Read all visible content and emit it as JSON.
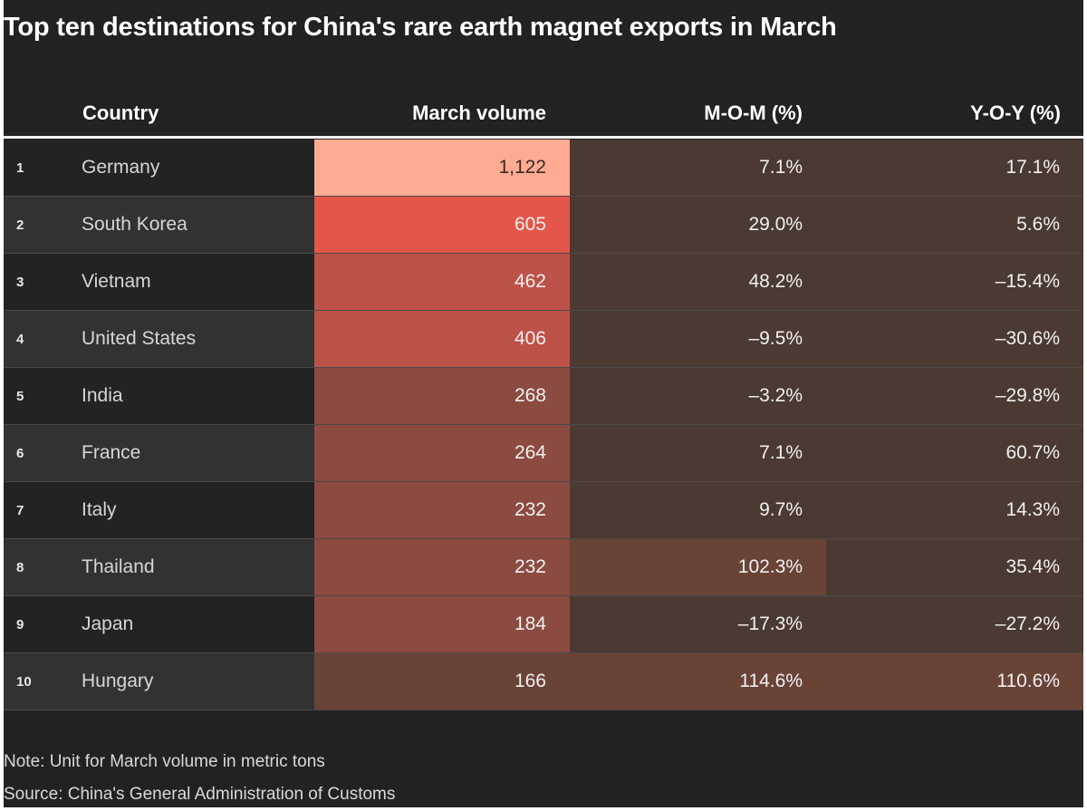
{
  "chart_data": {
    "type": "table",
    "title": "Top ten destinations for China's rare earth magnet exports in March",
    "columns": [
      "",
      "Country",
      "March volume",
      "M-O-M (%)",
      "Y-O-Y (%)"
    ],
    "rows": [
      {
        "rank": "1",
        "country": "Germany",
        "volume": "1,122",
        "mom": "7.1%",
        "yoy": "17.1%"
      },
      {
        "rank": "2",
        "country": "South Korea",
        "volume": "605",
        "mom": "29.0%",
        "yoy": "5.6%"
      },
      {
        "rank": "3",
        "country": "Vietnam",
        "volume": "462",
        "mom": "48.2%",
        "yoy": "–15.4%"
      },
      {
        "rank": "4",
        "country": "United States",
        "volume": "406",
        "mom": "–9.5%",
        "yoy": "–30.6%"
      },
      {
        "rank": "5",
        "country": "India",
        "volume": "268",
        "mom": "–3.2%",
        "yoy": "–29.8%"
      },
      {
        "rank": "6",
        "country": "France",
        "volume": "264",
        "mom": "7.1%",
        "yoy": "60.7%"
      },
      {
        "rank": "7",
        "country": "Italy",
        "volume": "232",
        "mom": "9.7%",
        "yoy": "14.3%"
      },
      {
        "rank": "8",
        "country": "Thailand",
        "volume": "232",
        "mom": "102.3%",
        "yoy": "35.4%"
      },
      {
        "rank": "9",
        "country": "Japan",
        "volume": "184",
        "mom": "–17.3%",
        "yoy": "–27.2%"
      },
      {
        "rank": "10",
        "country": "Hungary",
        "volume": "166",
        "mom": "114.6%",
        "yoy": "110.6%"
      }
    ],
    "heat_colors": {
      "volume": [
        "#fdab92",
        "#e4564a",
        "#bd5248",
        "#bd5248",
        "#8b4b41",
        "#8b4b41",
        "#8b4b41",
        "#8b4b41",
        "#8b4b41",
        "#6a4337"
      ],
      "mom": [
        "#4b3a31",
        "#4b3a31",
        "#4b3a31",
        "#4b3a31",
        "#4b3a31",
        "#4b3a31",
        "#4b3a31",
        "#6a4337",
        "#4b3a31",
        "#6a4337"
      ],
      "yoy": [
        "#4b3a31",
        "#4b3a31",
        "#4b3a31",
        "#4b3a31",
        "#4b3a31",
        "#4b3a31",
        "#4b3a31",
        "#4b3a31",
        "#4b3a31",
        "#6a4337"
      ],
      "stripe_dark": "#232323",
      "stripe_light": "#323232"
    }
  },
  "notes": {
    "unit": "Note: Unit for March volume in metric tons",
    "source": "Source: China's General Administration of Customs"
  }
}
